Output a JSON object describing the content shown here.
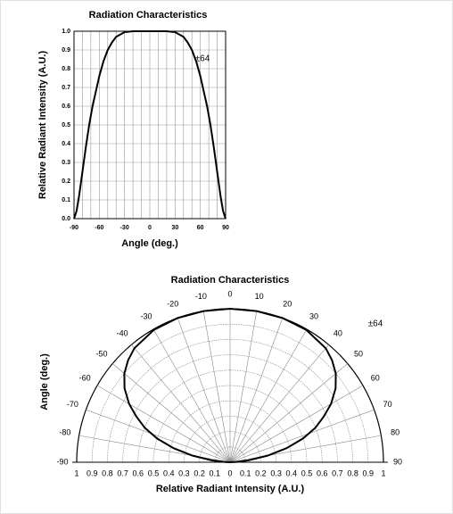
{
  "chart_data": [
    {
      "type": "line",
      "title": "Radiation Characteristics",
      "xlabel": "Angle (deg.)",
      "ylabel": "Relative Radiant Intensity (A.U.)",
      "annotation": "±64",
      "x": [
        -90,
        -87,
        -84,
        -80,
        -76,
        -72,
        -68,
        -64,
        -60,
        -55,
        -50,
        -45,
        -40,
        -30,
        -20,
        -10,
        0,
        10,
        20,
        30,
        40,
        45,
        50,
        55,
        60,
        64,
        68,
        72,
        76,
        80,
        84,
        87,
        90
      ],
      "values": [
        0,
        0.04,
        0.12,
        0.25,
        0.38,
        0.5,
        0.6,
        0.68,
        0.76,
        0.84,
        0.9,
        0.94,
        0.97,
        0.995,
        1,
        1,
        1,
        1,
        1,
        0.995,
        0.97,
        0.94,
        0.9,
        0.84,
        0.76,
        0.68,
        0.6,
        0.5,
        0.38,
        0.25,
        0.12,
        0.04,
        0
      ],
      "color": "#000000",
      "xlim": [
        -90,
        90
      ],
      "xticks": [
        -90,
        -60,
        -30,
        0,
        30,
        60,
        90
      ],
      "xminorticks": [
        -80,
        -70,
        -50,
        -40,
        -20,
        -10,
        10,
        20,
        40,
        50,
        70,
        80
      ],
      "ylim": [
        0,
        1
      ],
      "yticks": [
        {
          "value": 0,
          "label": "0.0"
        },
        0.1,
        0.2,
        0.3,
        0.4,
        0.5,
        0.6,
        0.7,
        0.8,
        0.9,
        {
          "value": 1,
          "label": "1.0"
        }
      ],
      "grid": true
    },
    {
      "type": "polar",
      "title": "Radiation Characteristics",
      "xlabel": "Relative Radiant Intensity (A.U.)",
      "ylabel": "Angle (deg.)",
      "annotation": "±64",
      "x": [
        -90,
        -87,
        -84,
        -80,
        -76,
        -72,
        -68,
        -64,
        -60,
        -55,
        -50,
        -45,
        -40,
        -30,
        -20,
        -10,
        0,
        10,
        20,
        30,
        40,
        45,
        50,
        55,
        60,
        64,
        68,
        72,
        76,
        80,
        84,
        87,
        90
      ],
      "values": [
        0,
        0.04,
        0.12,
        0.25,
        0.38,
        0.5,
        0.6,
        0.68,
        0.76,
        0.84,
        0.9,
        0.94,
        0.97,
        0.995,
        1,
        1,
        1,
        1,
        1,
        0.995,
        0.97,
        0.94,
        0.9,
        0.84,
        0.76,
        0.68,
        0.6,
        0.5,
        0.38,
        0.25,
        0.12,
        0.04,
        0
      ],
      "color": "#000000",
      "thetalim": [
        -90,
        90
      ],
      "thetaticks": [
        -90,
        -80,
        -70,
        -60,
        -50,
        -40,
        -30,
        -20,
        -10,
        0,
        10,
        20,
        30,
        40,
        50,
        60,
        70,
        80,
        90
      ],
      "rlim": [
        0,
        1
      ],
      "rticks": [
        0,
        0.1,
        0.2,
        0.3,
        0.4,
        0.5,
        0.6,
        0.7,
        0.8,
        0.9,
        1
      ],
      "grid": true
    }
  ]
}
